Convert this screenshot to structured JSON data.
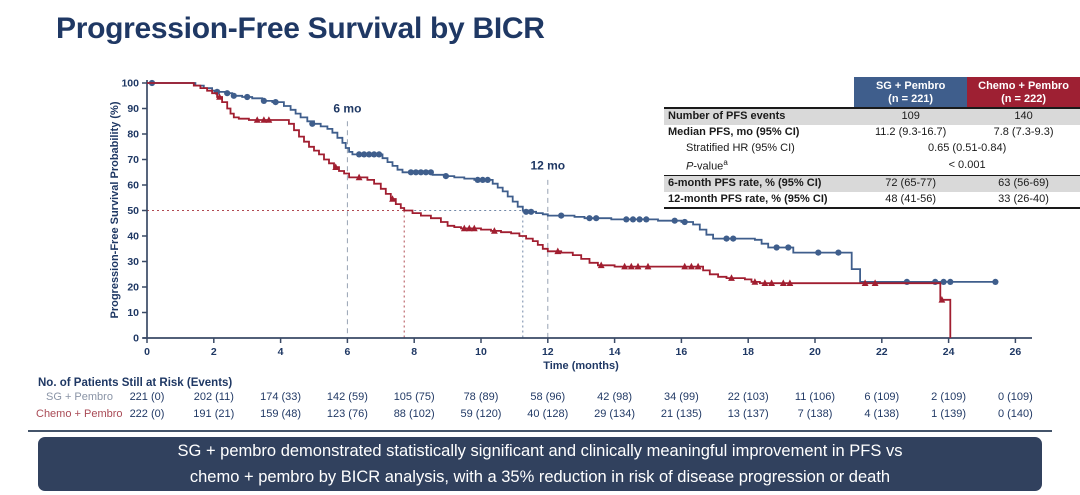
{
  "slide": {
    "title": "Progression-Free Survival by BICR"
  },
  "colors": {
    "navy_text": "#1F3864",
    "sg_blue": "#3F5E8C",
    "chemo_red": "#9E2033",
    "gray_row": "#D9D9D9",
    "banner_bg": "#31415E",
    "axis": "#3A4A66"
  },
  "chart_data": {
    "type": "line",
    "subtype": "kaplan-meier-step",
    "title": "",
    "xlabel": "Time (months)",
    "ylabel": "Progression-Free Survival Probability (%)",
    "xlim": [
      0,
      26.5
    ],
    "ylim": [
      0,
      100
    ],
    "x_ticks": [
      0,
      2,
      4,
      6,
      8,
      10,
      12,
      14,
      16,
      18,
      20,
      22,
      24,
      26
    ],
    "y_ticks": [
      0,
      10,
      20,
      30,
      40,
      50,
      60,
      70,
      80,
      90,
      100
    ],
    "grid": false,
    "annotations": [
      {
        "text": "6 mo",
        "t": 6,
        "p": 88.5
      },
      {
        "text": "12 mo",
        "t": 12,
        "p": 66
      }
    ],
    "reference_lines": [
      {
        "kind": "v",
        "t": 6,
        "p_top": 85,
        "dash": "dash",
        "color": "#97A2B3"
      },
      {
        "kind": "v",
        "t": 12,
        "p_top": 62,
        "dash": "dash",
        "color": "#97A2B3"
      },
      {
        "kind": "v",
        "t": 7.7,
        "p_top": 50,
        "dash": "dot",
        "color": "#B04A52"
      },
      {
        "kind": "v",
        "t": 11.25,
        "p_top": 50,
        "dash": "dot",
        "color": "#7288A8"
      },
      {
        "kind": "h",
        "p": 50,
        "t_from": 0,
        "t_to": 7.7,
        "dash": "dot",
        "color": "#B04A52"
      },
      {
        "kind": "h",
        "p": 50,
        "t_from": 7.7,
        "t_to": 11.25,
        "dash": "dot",
        "color": "#7288A8"
      }
    ],
    "series": [
      {
        "id": "sg-pembro",
        "name": "SG + Pembro",
        "color": "#3F5E8C",
        "marker": "circle",
        "median_months": 11.2,
        "steps": [
          [
            0,
            100
          ],
          [
            1.45,
            99
          ],
          [
            1.7,
            98
          ],
          [
            1.95,
            97
          ],
          [
            2.15,
            96.5
          ],
          [
            2.35,
            96
          ],
          [
            2.55,
            95
          ],
          [
            2.85,
            94.5
          ],
          [
            3.15,
            94
          ],
          [
            3.45,
            93
          ],
          [
            3.75,
            92.5
          ],
          [
            4.1,
            91
          ],
          [
            4.3,
            89.5
          ],
          [
            4.45,
            88
          ],
          [
            4.6,
            86.5
          ],
          [
            4.8,
            85
          ],
          [
            5.0,
            84
          ],
          [
            5.2,
            83
          ],
          [
            5.4,
            82
          ],
          [
            5.55,
            80.5
          ],
          [
            5.7,
            78.5
          ],
          [
            5.85,
            76.5
          ],
          [
            5.95,
            74.5
          ],
          [
            6.05,
            73
          ],
          [
            6.15,
            72
          ],
          [
            7.05,
            70.5
          ],
          [
            7.2,
            69
          ],
          [
            7.35,
            67.5
          ],
          [
            7.5,
            66
          ],
          [
            7.65,
            65
          ],
          [
            8.55,
            64
          ],
          [
            8.9,
            63.5
          ],
          [
            9.2,
            63
          ],
          [
            9.5,
            62.5
          ],
          [
            9.8,
            62
          ],
          [
            10.35,
            60.5
          ],
          [
            10.5,
            59
          ],
          [
            10.65,
            57.5
          ],
          [
            10.8,
            55.5
          ],
          [
            10.95,
            53.5
          ],
          [
            11.1,
            51.5
          ],
          [
            11.25,
            50
          ],
          [
            11.45,
            49.5
          ],
          [
            11.65,
            49
          ],
          [
            11.85,
            48.5
          ],
          [
            12.0,
            48
          ],
          [
            12.8,
            47.5
          ],
          [
            13.1,
            47
          ],
          [
            13.9,
            46.5
          ],
          [
            15.3,
            46
          ],
          [
            16.0,
            45.5
          ],
          [
            16.35,
            44.5
          ],
          [
            16.55,
            42.5
          ],
          [
            16.75,
            40.5
          ],
          [
            16.95,
            39
          ],
          [
            18.2,
            38.5
          ],
          [
            18.4,
            37
          ],
          [
            18.6,
            35.5
          ],
          [
            19.35,
            33.5
          ],
          [
            21.1,
            27
          ],
          [
            21.35,
            22
          ],
          [
            25.4,
            22
          ]
        ],
        "censors": [
          [
            0.15,
            100
          ],
          [
            2.1,
            96.5
          ],
          [
            2.4,
            96
          ],
          [
            2.6,
            95
          ],
          [
            3.0,
            94.5
          ],
          [
            3.5,
            93
          ],
          [
            3.85,
            92.5
          ],
          [
            4.95,
            84
          ],
          [
            6.35,
            72
          ],
          [
            6.5,
            72
          ],
          [
            6.65,
            72
          ],
          [
            6.8,
            72
          ],
          [
            6.95,
            72
          ],
          [
            7.9,
            65
          ],
          [
            8.05,
            65
          ],
          [
            8.2,
            65
          ],
          [
            8.35,
            65
          ],
          [
            8.5,
            65
          ],
          [
            8.95,
            63.5
          ],
          [
            9.9,
            62
          ],
          [
            10.05,
            62
          ],
          [
            10.2,
            62
          ],
          [
            11.35,
            49.5
          ],
          [
            11.5,
            49.5
          ],
          [
            12.4,
            48
          ],
          [
            13.25,
            47
          ],
          [
            13.45,
            47
          ],
          [
            14.35,
            46.5
          ],
          [
            14.55,
            46.5
          ],
          [
            14.75,
            46.5
          ],
          [
            14.95,
            46.5
          ],
          [
            15.8,
            46
          ],
          [
            16.1,
            45.5
          ],
          [
            17.35,
            39
          ],
          [
            17.55,
            39
          ],
          [
            18.85,
            35.5
          ],
          [
            19.2,
            35.5
          ],
          [
            20.1,
            33.5
          ],
          [
            20.7,
            33.5
          ],
          [
            22.75,
            22
          ],
          [
            23.6,
            22
          ],
          [
            23.85,
            22
          ],
          [
            24.05,
            22
          ],
          [
            25.4,
            22
          ]
        ]
      },
      {
        "id": "chemo-pembro",
        "name": "Chemo + Pembro",
        "color": "#A11E30",
        "marker": "triangle",
        "median_months": 7.8,
        "steps": [
          [
            0,
            100
          ],
          [
            1.4,
            99
          ],
          [
            1.6,
            98
          ],
          [
            1.8,
            97
          ],
          [
            1.95,
            96
          ],
          [
            2.1,
            94.5
          ],
          [
            2.25,
            92.5
          ],
          [
            2.4,
            90
          ],
          [
            2.5,
            88
          ],
          [
            2.6,
            86.5
          ],
          [
            2.75,
            86
          ],
          [
            3.05,
            85.5
          ],
          [
            4.25,
            84
          ],
          [
            4.4,
            81.5
          ],
          [
            4.55,
            79
          ],
          [
            4.7,
            77
          ],
          [
            4.85,
            75
          ],
          [
            5.0,
            73.5
          ],
          [
            5.15,
            72
          ],
          [
            5.3,
            70
          ],
          [
            5.45,
            68.5
          ],
          [
            5.6,
            67
          ],
          [
            5.75,
            65.5
          ],
          [
            5.9,
            64.5
          ],
          [
            6.05,
            63
          ],
          [
            6.6,
            62
          ],
          [
            6.8,
            60.5
          ],
          [
            7.0,
            58.5
          ],
          [
            7.15,
            56.5
          ],
          [
            7.3,
            54.5
          ],
          [
            7.45,
            52.5
          ],
          [
            7.6,
            51
          ],
          [
            7.7,
            50
          ],
          [
            7.95,
            49
          ],
          [
            8.2,
            48
          ],
          [
            8.5,
            47
          ],
          [
            8.8,
            45.5
          ],
          [
            9.0,
            44
          ],
          [
            9.2,
            43.5
          ],
          [
            9.4,
            43
          ],
          [
            10.0,
            42.5
          ],
          [
            10.3,
            42
          ],
          [
            10.6,
            41.5
          ],
          [
            10.9,
            41
          ],
          [
            11.15,
            40
          ],
          [
            11.35,
            39
          ],
          [
            11.55,
            38
          ],
          [
            11.7,
            36.5
          ],
          [
            11.85,
            35
          ],
          [
            12.0,
            34
          ],
          [
            12.4,
            33.5
          ],
          [
            12.75,
            32.5
          ],
          [
            13.0,
            31
          ],
          [
            13.25,
            29.5
          ],
          [
            13.5,
            28.5
          ],
          [
            14.0,
            28
          ],
          [
            16.65,
            26.5
          ],
          [
            16.85,
            25
          ],
          [
            17.1,
            24
          ],
          [
            17.35,
            23.5
          ],
          [
            17.9,
            23
          ],
          [
            18.1,
            22
          ],
          [
            18.35,
            21.5
          ],
          [
            23.75,
            15
          ],
          [
            24.05,
            0
          ]
        ],
        "censors": [
          [
            2.17,
            94.5
          ],
          [
            3.3,
            85.5
          ],
          [
            3.5,
            85.5
          ],
          [
            3.65,
            85.5
          ],
          [
            5.65,
            67
          ],
          [
            6.35,
            63
          ],
          [
            7.35,
            54.5
          ],
          [
            9.5,
            43
          ],
          [
            9.65,
            43
          ],
          [
            9.8,
            43
          ],
          [
            10.4,
            42
          ],
          [
            12.3,
            34
          ],
          [
            13.6,
            28.5
          ],
          [
            14.3,
            28
          ],
          [
            14.5,
            28
          ],
          [
            14.7,
            28
          ],
          [
            15.0,
            28
          ],
          [
            16.1,
            28
          ],
          [
            16.3,
            28
          ],
          [
            16.5,
            28
          ],
          [
            17.5,
            23.5
          ],
          [
            18.2,
            22
          ],
          [
            18.5,
            21.5
          ],
          [
            18.7,
            21.5
          ],
          [
            19.05,
            21.5
          ],
          [
            19.25,
            21.5
          ],
          [
            21.5,
            21.5
          ],
          [
            21.8,
            21.5
          ],
          [
            23.8,
            15
          ]
        ]
      }
    ]
  },
  "stats_table": {
    "headers": [
      {
        "line1": "SG + Pembro",
        "line2": "(n = 221)"
      },
      {
        "line1": "Chemo + Pembro",
        "line2": "(n = 222)"
      }
    ],
    "rows": [
      {
        "label": "Number of PFS events",
        "v1": "109",
        "v2": "140"
      },
      {
        "label": "Median PFS, mo (95% CI)",
        "v1": "11.2 (9.3-16.7)",
        "v2": "7.8 (7.3-9.3)"
      },
      {
        "label": "Stratified HR (95% CI)",
        "merged": "0.65 (0.51-0.84)"
      },
      {
        "label_italic": "P",
        "label_rest": "-value",
        "label_sup": "a",
        "merged": "< 0.001"
      },
      {
        "label": "6-month PFS rate, % (95% CI)",
        "v1": "72 (65-77)",
        "v2": "63 (56-69)"
      },
      {
        "label": "12-month PFS rate, % (95% CI)",
        "v1": "48 (41-56)",
        "v2": "33 (26-40)"
      }
    ]
  },
  "at_risk": {
    "title": "No. of Patients Still at Risk (Events)",
    "rows": [
      {
        "name": "SG + Pembro",
        "color": "#8A94A6",
        "values": [
          "221 (0)",
          "202 (11)",
          "174 (33)",
          "142 (59)",
          "105 (75)",
          "78 (89)",
          "58 (96)",
          "42 (98)",
          "34 (99)",
          "22 (103)",
          "11 (106)",
          "6 (109)",
          "2 (109)",
          "0 (109)"
        ]
      },
      {
        "name": "Chemo + Pembro",
        "color": "#A94A55",
        "values": [
          "222 (0)",
          "191 (21)",
          "159 (48)",
          "123 (76)",
          "88 (102)",
          "59 (120)",
          "40 (128)",
          "29 (134)",
          "21 (135)",
          "13 (137)",
          "7 (138)",
          "4 (138)",
          "1 (139)",
          "0 (140)"
        ]
      }
    ]
  },
  "banner": {
    "line1": "SG + pembro demonstrated statistically significant and clinically meaningful improvement in PFS vs",
    "line2": "chemo + pembro by BICR analysis, with a 35% reduction in risk of disease progression or death"
  }
}
